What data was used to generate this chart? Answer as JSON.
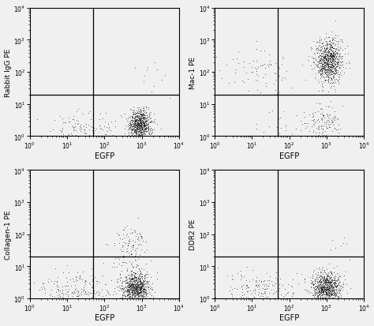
{
  "panels": [
    {
      "ylabel": "Rabbit IgG PE",
      "gate_x": 50,
      "gate_y": 20,
      "clusters": [
        {
          "x_log_mean": 2.95,
          "x_log_std": 0.15,
          "y_log_mean": 0.35,
          "y_log_std": 0.22,
          "n": 800
        },
        {
          "x_log_mean": 1.4,
          "x_log_std": 0.55,
          "y_log_mean": 0.25,
          "y_log_std": 0.28,
          "n": 120
        },
        {
          "x_log_mean": 3.3,
          "x_log_std": 0.25,
          "y_log_mean": 1.8,
          "y_log_std": 0.35,
          "n": 12
        }
      ]
    },
    {
      "ylabel": "Mac-1 PE",
      "gate_x": 50,
      "gate_y": 20,
      "clusters": [
        {
          "x_log_mean": 3.05,
          "x_log_std": 0.18,
          "y_log_mean": 2.35,
          "y_log_std": 0.32,
          "n": 900
        },
        {
          "x_log_mean": 1.2,
          "x_log_std": 0.5,
          "y_log_mean": 2.15,
          "y_log_std": 0.4,
          "n": 80
        },
        {
          "x_log_mean": 2.95,
          "x_log_std": 0.22,
          "y_log_mean": 0.45,
          "y_log_std": 0.3,
          "n": 130
        },
        {
          "x_log_mean": 1.8,
          "x_log_std": 0.45,
          "y_log_mean": 0.3,
          "y_log_std": 0.28,
          "n": 30
        }
      ]
    },
    {
      "ylabel": "Collagen-1 PE",
      "gate_x": 50,
      "gate_y": 20,
      "clusters": [
        {
          "x_log_mean": 2.85,
          "x_log_std": 0.18,
          "y_log_mean": 0.35,
          "y_log_std": 0.25,
          "n": 900
        },
        {
          "x_log_mean": 1.2,
          "x_log_std": 0.55,
          "y_log_mean": 0.25,
          "y_log_std": 0.3,
          "n": 200
        },
        {
          "x_log_mean": 2.75,
          "x_log_std": 0.18,
          "y_log_mean": 1.75,
          "y_log_std": 0.3,
          "n": 90
        },
        {
          "x_log_mean": 2.5,
          "x_log_std": 0.3,
          "y_log_mean": 1.2,
          "y_log_std": 0.35,
          "n": 40
        }
      ]
    },
    {
      "ylabel": "DDR2 PE",
      "gate_x": 50,
      "gate_y": 20,
      "clusters": [
        {
          "x_log_mean": 3.0,
          "x_log_std": 0.18,
          "y_log_mean": 0.35,
          "y_log_std": 0.22,
          "n": 850
        },
        {
          "x_log_mean": 1.2,
          "x_log_std": 0.55,
          "y_log_mean": 0.25,
          "y_log_std": 0.28,
          "n": 180
        },
        {
          "x_log_mean": 3.3,
          "x_log_std": 0.2,
          "y_log_mean": 1.6,
          "y_log_std": 0.25,
          "n": 8
        }
      ]
    }
  ],
  "xlabel": "EGFP",
  "xlim": [
    1,
    10000
  ],
  "ylim": [
    1,
    10000
  ],
  "marker_size": 1.2,
  "marker_color": "#1a1a1a",
  "background_color": "#f0f0f0",
  "line_color": "black",
  "line_width": 0.9,
  "ylabel_fontsize": 6.5,
  "xlabel_fontsize": 7,
  "tick_fontsize": 5.5
}
